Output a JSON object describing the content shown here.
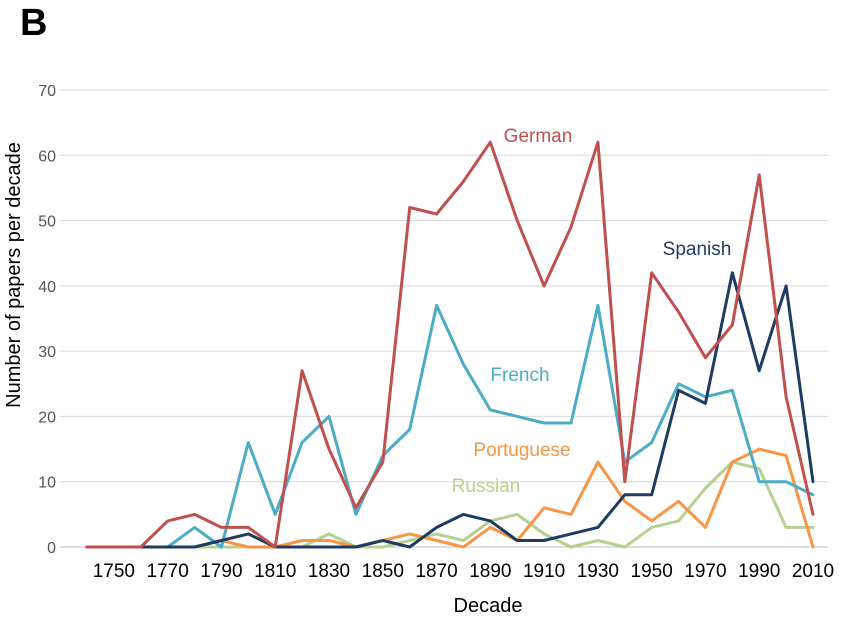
{
  "panel_letter": "B",
  "chart_data": {
    "type": "line",
    "xlabel": "Decade",
    "ylabel": "Number of papers per decade",
    "xlim": [
      1740,
      2010
    ],
    "ylim": [
      0,
      70
    ],
    "yticks": [
      0,
      10,
      20,
      30,
      40,
      50,
      60,
      70
    ],
    "xticks": [
      1750,
      1770,
      1790,
      1810,
      1830,
      1850,
      1870,
      1890,
      1910,
      1930,
      1950,
      1970,
      1990,
      2010
    ],
    "grid": true,
    "x": [
      1740,
      1750,
      1760,
      1770,
      1780,
      1790,
      1800,
      1810,
      1820,
      1830,
      1840,
      1850,
      1860,
      1870,
      1880,
      1890,
      1900,
      1910,
      1920,
      1930,
      1940,
      1950,
      1960,
      1970,
      1980,
      1990,
      2000,
      2010
    ],
    "series": [
      {
        "name": "German",
        "color": "#c0504d",
        "values": [
          0,
          0,
          0,
          4,
          5,
          3,
          3,
          0,
          27,
          15,
          6,
          13,
          52,
          51,
          56,
          62,
          50,
          40,
          49,
          62,
          10,
          42,
          36,
          29,
          34,
          57,
          23,
          5
        ]
      },
      {
        "name": "French",
        "color": "#4bacc6",
        "values": [
          0,
          0,
          0,
          0,
          3,
          0,
          16,
          5,
          16,
          20,
          5,
          14,
          18,
          37,
          28,
          21,
          20,
          19,
          19,
          37,
          13,
          16,
          25,
          23,
          24,
          10,
          10,
          8
        ]
      },
      {
        "name": "Spanish",
        "color": "#1f3b63",
        "values": [
          0,
          0,
          0,
          0,
          0,
          1,
          2,
          0,
          0,
          0,
          0,
          1,
          0,
          3,
          5,
          4,
          1,
          1,
          2,
          3,
          8,
          8,
          24,
          22,
          42,
          27,
          40,
          10
        ]
      },
      {
        "name": "Portuguese",
        "color": "#f79646",
        "values": [
          0,
          0,
          0,
          0,
          0,
          1,
          0,
          0,
          1,
          1,
          0,
          1,
          2,
          1,
          0,
          3,
          1,
          6,
          5,
          13,
          7,
          4,
          7,
          3,
          13,
          15,
          14,
          0
        ]
      },
      {
        "name": "Russian",
        "color": "#b5d18f",
        "values": [
          0,
          0,
          0,
          0,
          0,
          0,
          0,
          0,
          0,
          2,
          0,
          0,
          1,
          2,
          1,
          4,
          5,
          2,
          0,
          1,
          0,
          3,
          4,
          9,
          13,
          12,
          3,
          3
        ]
      }
    ]
  }
}
